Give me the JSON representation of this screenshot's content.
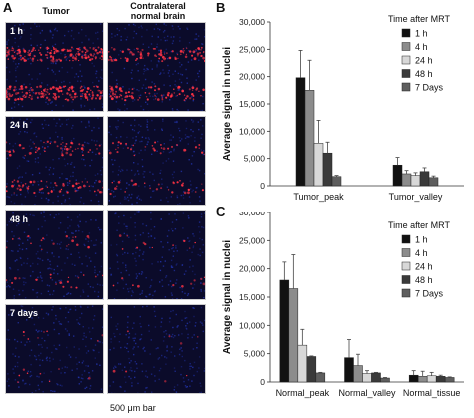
{
  "panel_a": {
    "letter": "A",
    "col_tumor": "Tumor",
    "col_normal_line1": "Contralateral",
    "col_normal_line2": "normal brain",
    "rows": [
      "1 h",
      "24 h",
      "48 h",
      "7 days"
    ],
    "scale_label": "500 μm bar",
    "colors": {
      "background": "#0b0b2a",
      "nuclei": "#2233aa",
      "signal": "#ff3344"
    }
  },
  "panel_b_letter": "B",
  "panel_c_letter": "C",
  "chart_data": [
    {
      "type": "bar",
      "title": "",
      "ylabel": "Average signal in nuclei",
      "xlabel": "",
      "ylim": [
        0,
        30000
      ],
      "yticks": [
        "0",
        "5,000",
        "10,000",
        "15,000",
        "20,000",
        "25,000",
        "30,000"
      ],
      "legend_title": "Time after MRT",
      "legend_position": "top-right",
      "categories": [
        "Tumor_peak",
        "Tumor_valley"
      ],
      "series": [
        {
          "name": "1 h",
          "color": "#111111",
          "values": [
            19800,
            3800
          ],
          "errors": [
            5000,
            1400
          ]
        },
        {
          "name": "4 h",
          "color": "#8c8c8c",
          "values": [
            17500,
            2200
          ],
          "errors": [
            5500,
            600
          ]
        },
        {
          "name": "24 h",
          "color": "#d8d8d8",
          "values": [
            7800,
            1900
          ],
          "errors": [
            4200,
            500
          ]
        },
        {
          "name": "48 h",
          "color": "#3a3a3a",
          "values": [
            6000,
            2600
          ],
          "errors": [
            2000,
            700
          ]
        },
        {
          "name": "7 Days",
          "color": "#5e5e5e",
          "values": [
            1700,
            1500
          ],
          "errors": [
            200,
            300
          ]
        }
      ]
    },
    {
      "type": "bar",
      "title": "",
      "ylabel": "Average signal in nuclei",
      "xlabel": "",
      "ylim": [
        0,
        30000
      ],
      "yticks": [
        "0",
        "5,000",
        "10,000",
        "15,000",
        "20,000",
        "25,000",
        "30,000"
      ],
      "legend_title": "Time after MRT",
      "legend_position": "top-right",
      "categories": [
        "Normal_peak",
        "Normal_valley",
        "Normal_tissue"
      ],
      "series": [
        {
          "name": "1 h",
          "color": "#111111",
          "values": [
            18000,
            4300,
            1200
          ],
          "errors": [
            3200,
            3200,
            800
          ]
        },
        {
          "name": "4 h",
          "color": "#8c8c8c",
          "values": [
            16500,
            2900,
            1000
          ],
          "errors": [
            6000,
            2000,
            900
          ]
        },
        {
          "name": "24 h",
          "color": "#d8d8d8",
          "values": [
            6500,
            1500,
            1100
          ],
          "errors": [
            2800,
            500,
            600
          ]
        },
        {
          "name": "48 h",
          "color": "#3a3a3a",
          "values": [
            4500,
            1600,
            1000
          ],
          "errors": [
            100,
            100,
            200
          ]
        },
        {
          "name": "7 Days",
          "color": "#5e5e5e",
          "values": [
            1600,
            700,
            800
          ],
          "errors": [
            100,
            100,
            100
          ]
        }
      ]
    }
  ]
}
